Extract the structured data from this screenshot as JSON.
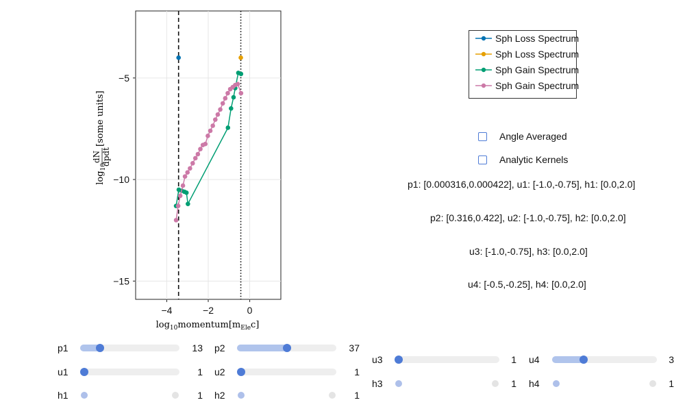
{
  "chart_data": {
    "type": "line",
    "xlabel_base": "log",
    "xlabel_sub": "10",
    "xlabel_rest": "momentum",
    "xlabel_unit": "[m",
    "xlabel_unit_sub": "Ele",
    "xlabel_unit_end": "c]",
    "ylabel_prefix": "log",
    "ylabel_sub": "10",
    "ylabel_num": "dN",
    "ylabel_den": "dpdt",
    "ylabel_unit": "[some units]",
    "xlim": [
      -5.5,
      1.5
    ],
    "ylim": [
      -15.9,
      -1.7
    ],
    "x_ticks": [
      -4,
      -2,
      0
    ],
    "x_tick_labels": [
      "−4",
      "−2",
      "0"
    ],
    "y_ticks": [
      -15,
      -10,
      -5
    ],
    "y_tick_labels": [
      "−15",
      "−10",
      "−5"
    ],
    "grid": true,
    "vlines": [
      {
        "x": -3.43,
        "style": "dashed"
      },
      {
        "x": -0.43,
        "style": "dotted"
      }
    ],
    "series": [
      {
        "name": "Sph Loss Spectrum",
        "color": "#0072b2",
        "points": [
          [
            -3.43,
            -4.0
          ]
        ]
      },
      {
        "name": "Sph Loss Spectrum",
        "color": "#e69f00",
        "points": [
          [
            -0.43,
            -4.0
          ]
        ]
      },
      {
        "name": "Sph Gain Spectrum",
        "color": "#009e73",
        "points": [
          [
            -3.55,
            -11.3
          ],
          [
            -3.42,
            -10.5
          ],
          [
            -3.28,
            -10.55
          ],
          [
            -3.15,
            -10.6
          ],
          [
            -3.05,
            -10.65
          ],
          [
            -2.98,
            -11.2
          ],
          [
            -1.05,
            -7.45
          ],
          [
            -0.9,
            -6.5
          ],
          [
            -0.78,
            -5.95
          ],
          [
            -0.7,
            -5.5
          ],
          [
            -0.55,
            -4.75
          ],
          [
            -0.42,
            -4.8
          ]
        ]
      },
      {
        "name": "Sph Gain Spectrum",
        "color": "#cc79a7",
        "points": [
          [
            -3.55,
            -12.0
          ],
          [
            -3.45,
            -11.3
          ],
          [
            -3.35,
            -10.8
          ],
          [
            -3.22,
            -10.3
          ],
          [
            -3.12,
            -9.85
          ],
          [
            -3.0,
            -9.65
          ],
          [
            -2.88,
            -9.45
          ],
          [
            -2.75,
            -9.2
          ],
          [
            -2.62,
            -8.95
          ],
          [
            -2.5,
            -8.75
          ],
          [
            -2.38,
            -8.5
          ],
          [
            -2.26,
            -8.3
          ],
          [
            -2.14,
            -8.25
          ],
          [
            -2.02,
            -7.85
          ],
          [
            -1.9,
            -7.6
          ],
          [
            -1.78,
            -7.35
          ],
          [
            -1.66,
            -7.05
          ],
          [
            -1.54,
            -6.8
          ],
          [
            -1.42,
            -6.55
          ],
          [
            -1.3,
            -6.25
          ],
          [
            -1.18,
            -6.0
          ],
          [
            -1.06,
            -5.75
          ],
          [
            -0.94,
            -5.55
          ],
          [
            -0.82,
            -5.45
          ],
          [
            -0.7,
            -5.35
          ],
          [
            -0.58,
            -5.3
          ],
          [
            -0.42,
            -5.75
          ]
        ]
      }
    ],
    "legend_placement": "top-right"
  },
  "legend": {
    "items": [
      {
        "label": "Sph Loss Spectrum",
        "color": "#0072b2"
      },
      {
        "label": "Sph Loss Spectrum",
        "color": "#e69f00"
      },
      {
        "label": "Sph Gain Spectrum",
        "color": "#009e73"
      },
      {
        "label": "Sph Gain Spectrum",
        "color": "#cc79a7"
      }
    ]
  },
  "toggles": [
    {
      "label": "Angle Averaged",
      "checked": false
    },
    {
      "label": "Analytic Kernels",
      "checked": false
    }
  ],
  "info_lines": [
    "p1: [0.000316,0.000422], u1: [-1.0,-0.75], h1: [0.0,2.0]",
    "p2: [0.316,0.422], u2: [-1.0,-0.75], h2: [0.0,2.0]",
    "u3: [-1.0,-0.75], h3: [0.0,2.0]",
    "u4: [-0.5,-0.25], h4: [0.0,2.0]"
  ],
  "sliders": [
    {
      "label": "p1",
      "value": "13",
      "fraction": 0.2,
      "active": true
    },
    {
      "label": "u1",
      "value": "1",
      "fraction": 0.0,
      "active": true
    },
    {
      "label": "h1",
      "value": "1",
      "fraction": 0.0,
      "active": false
    },
    {
      "label": "p2",
      "value": "37",
      "fraction": 0.5,
      "active": true
    },
    {
      "label": "u2",
      "value": "1",
      "fraction": 0.0,
      "active": true
    },
    {
      "label": "h2",
      "value": "1",
      "fraction": 0.0,
      "active": false
    },
    {
      "label": "u3",
      "value": "1",
      "fraction": 0.0,
      "active": true
    },
    {
      "label": "h3",
      "value": "1",
      "fraction": 0.0,
      "active": false
    },
    {
      "label": "u4",
      "value": "3",
      "fraction": 0.3,
      "active": true
    },
    {
      "label": "h4",
      "value": "1",
      "fraction": 0.0,
      "active": false
    }
  ],
  "colors": {
    "slider_active": "#4e7bd6",
    "slider_fill": "#b0c4ec",
    "slider_inactive": "#aec0ea",
    "track": "#eeeeee"
  }
}
